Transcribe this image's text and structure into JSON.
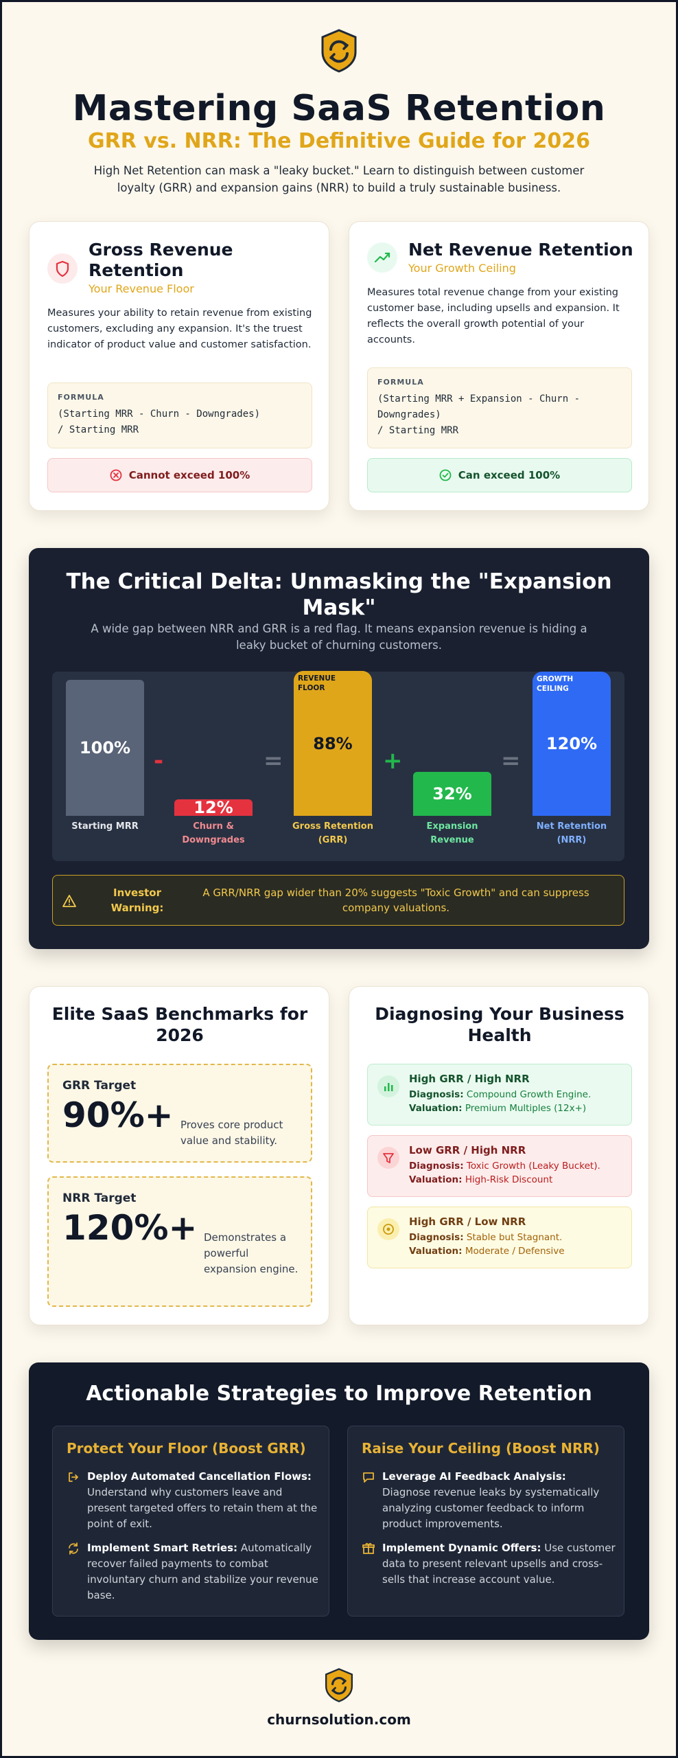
{
  "header": {
    "logo_icon": "churn-cycle-shield-icon",
    "title": "Mastering SaaS Retention",
    "subtitle": "GRR vs. NRR: The Definitive Guide for 2026",
    "intro": "High Net Retention can mask a \"leaky bucket.\" Learn to distinguish between customer loyalty (GRR) and expansion gains (NRR) to build a truly sustainable business."
  },
  "colors": {
    "accent": "#e0a61a",
    "dark": "#1a2030",
    "red": "#e5323f",
    "green": "#22b84c",
    "blue": "#2f6af5",
    "slate": "#5a6478"
  },
  "grr_card": {
    "icon": "shield-icon",
    "title": "Gross Revenue Retention",
    "subtitle": "Your Revenue Floor",
    "description": "Measures your ability to retain revenue from existing customers, excluding any expansion. It's the truest indicator of product value and customer satisfaction.",
    "formula_label": "FORMULA",
    "formula": "(Starting MRR - Churn - Downgrades)\n/ Starting MRR",
    "status_icon": "x-circle-icon",
    "status": "Cannot exceed 100%"
  },
  "nrr_card": {
    "icon": "trending-up-icon",
    "title": "Net Revenue Retention",
    "subtitle": "Your Growth Ceiling",
    "description": "Measures total revenue change from your existing customer base, including upsells and expansion. It reflects the overall growth potential of your accounts.",
    "formula_label": "FORMULA",
    "formula": "(Starting MRR + Expansion - Churn -\nDowngrades)\n/ Starting MRR",
    "status_icon": "check-circle-icon",
    "status": "Can exceed 100%"
  },
  "delta": {
    "title": "The Critical Delta: Unmasking the \"Expansion Mask\"",
    "subtitle": "A wide gap between NRR and GRR is a red flag. It means expansion revenue is hiding a leaky bucket of churning customers.",
    "bars": [
      {
        "label": "Starting MRR",
        "value": 100,
        "display": "100%",
        "tag": ""
      },
      {
        "label": "Churn & Downgrades",
        "value": 12,
        "display": "12%",
        "tag": ""
      },
      {
        "label": "Gross Retention (GRR)",
        "value": 88,
        "display": "88%",
        "tag": "REVENUE FLOOR"
      },
      {
        "label": "Expansion Revenue",
        "value": 32,
        "display": "32%",
        "tag": ""
      },
      {
        "label": "Net Retention (NRR)",
        "value": 120,
        "display": "120%",
        "tag": "GROWTH CEILING"
      }
    ],
    "operators": [
      "-",
      "=",
      "+",
      "="
    ],
    "warning_icon": "warning-triangle-icon",
    "warning_label": "Investor Warning:",
    "warning_text": "A GRR/NRR gap wider than 20% suggests \"Toxic Growth\" and can suppress company valuations."
  },
  "benchmarks": {
    "title": "Elite SaaS Benchmarks for 2026",
    "items": [
      {
        "label": "GRR Target",
        "value": "90%+",
        "description": "Proves core product value and stability."
      },
      {
        "label": "NRR Target",
        "value": "120%+",
        "description": "Demonstrates a powerful expansion engine."
      }
    ]
  },
  "diagnosis": {
    "title": "Diagnosing Your Business Health",
    "items": [
      {
        "icon": "bar-chart-icon",
        "title": "High GRR / High NRR",
        "diagnosis_label": "Diagnosis:",
        "diagnosis": "Compound Growth Engine.",
        "valuation_label": "Valuation:",
        "valuation": "Premium Multiples (12x+)"
      },
      {
        "icon": "funnel-icon",
        "title": "Low GRR / High NRR",
        "diagnosis_label": "Diagnosis:",
        "diagnosis": "Toxic Growth (Leaky Bucket).",
        "valuation_label": "Valuation:",
        "valuation": "High-Risk Discount"
      },
      {
        "icon": "target-icon",
        "title": "High GRR / Low NRR",
        "diagnosis_label": "Diagnosis:",
        "diagnosis": "Stable but Stagnant.",
        "valuation_label": "Valuation:",
        "valuation": "Moderate / Defensive"
      }
    ]
  },
  "strategies": {
    "title": "Actionable Strategies to Improve Retention",
    "columns": [
      {
        "heading": "Protect Your Floor (Boost GRR)",
        "items": [
          {
            "icon": "exit-arrow-icon",
            "title": "Deploy Automated Cancellation Flows:",
            "text": "Understand why customers leave and present targeted offers to retain them at the point of exit."
          },
          {
            "icon": "refresh-icon",
            "title": "Implement Smart Retries:",
            "text": "Automatically recover failed payments to combat involuntary churn and stabilize your revenue base."
          }
        ]
      },
      {
        "heading": "Raise Your Ceiling (Boost NRR)",
        "items": [
          {
            "icon": "chat-bubble-icon",
            "title": "Leverage AI Feedback Analysis:",
            "text": "Diagnose revenue leaks by systematically analyzing customer feedback to inform product improvements."
          },
          {
            "icon": "gift-icon",
            "title": "Implement Dynamic Offers:",
            "text": "Use customer data to present relevant upsells and cross-sells that increase account value."
          }
        ]
      }
    ]
  },
  "footer": {
    "domain": "churnsolution.com"
  }
}
